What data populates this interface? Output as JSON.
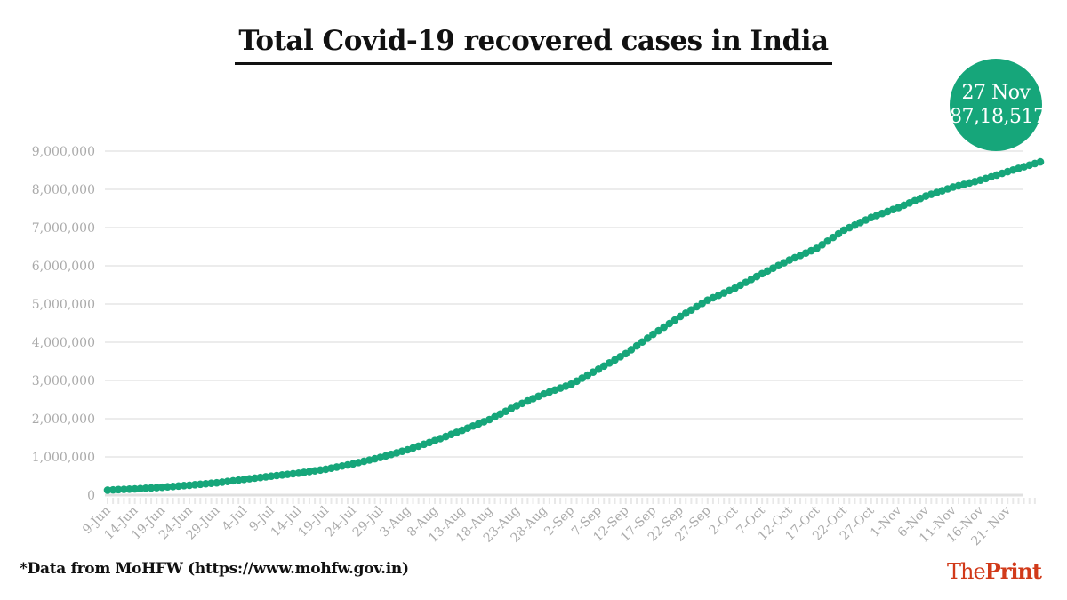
{
  "title": "Total Covid-19 recovered cases in India",
  "callout": {
    "date": "27 Nov",
    "value": "87,18,517"
  },
  "footnote": "*Data from MoHFW (https://www.mohfw.gov.in)",
  "logo": {
    "part1": "The",
    "part2": "Print"
  },
  "colors": {
    "series": "#16a67a",
    "logo": "#d13a1a",
    "grid": "#e6e6e6",
    "tick_text": "#aaaaaa"
  },
  "chart_data": {
    "type": "scatter",
    "title": "Total Covid-19 recovered cases in India",
    "xlabel": "",
    "ylabel": "",
    "ylim": [
      0,
      9000000
    ],
    "y_ticks": [
      0,
      1000000,
      2000000,
      3000000,
      4000000,
      5000000,
      6000000,
      7000000,
      8000000,
      9000000
    ],
    "y_tick_labels": [
      "0",
      "1,000,000",
      "2,000,000",
      "3,000,000",
      "4,000,000",
      "5,000,000",
      "6,000,000",
      "7,000,000",
      "8,000,000",
      "9,000,000"
    ],
    "x_start": "9-Jun",
    "x_end": "27-Nov",
    "num_days": 172,
    "x_tick_labels": [
      "9-Jun",
      "14-Jun",
      "19-Jun",
      "24-Jun",
      "29-Jun",
      "4-Jul",
      "9-Jul",
      "14-Jul",
      "19-Jul",
      "24-Jul",
      "29-Jul",
      "3-Aug",
      "8-Aug",
      "13-Aug",
      "18-Aug",
      "23-Aug",
      "28-Aug",
      "2-Sep",
      "7-Sep",
      "12-Sep",
      "17-Sep",
      "22-Sep",
      "27-Sep",
      "2-Oct",
      "7-Oct",
      "12-Oct",
      "17-Oct",
      "22-Oct",
      "27-Oct",
      "1-Nov",
      "6-Nov",
      "11-Nov",
      "16-Nov",
      "21- Nov"
    ],
    "grid": true,
    "series": [
      {
        "name": "Recovered cases",
        "day_index": [
          0,
          5,
          10,
          15,
          20,
          25,
          30,
          35,
          40,
          45,
          50,
          55,
          60,
          65,
          70,
          75,
          80,
          85,
          90,
          95,
          100,
          105,
          110,
          115,
          120,
          125,
          130,
          135,
          140,
          145,
          150,
          155,
          160,
          165,
          171
        ],
        "values": [
          130000,
          162000,
          205000,
          258000,
          322000,
          410000,
          496000,
          575000,
          677000,
          818000,
          986000,
          1186000,
          1425000,
          1696000,
          1977000,
          2339000,
          2648000,
          2902000,
          3296000,
          3702000,
          4208000,
          4675000,
          5101000,
          5415000,
          5795000,
          6149000,
          6454000,
          6933000,
          7264000,
          7524000,
          7823000,
          8059000,
          8239000,
          8463000,
          8718517
        ]
      }
    ]
  }
}
